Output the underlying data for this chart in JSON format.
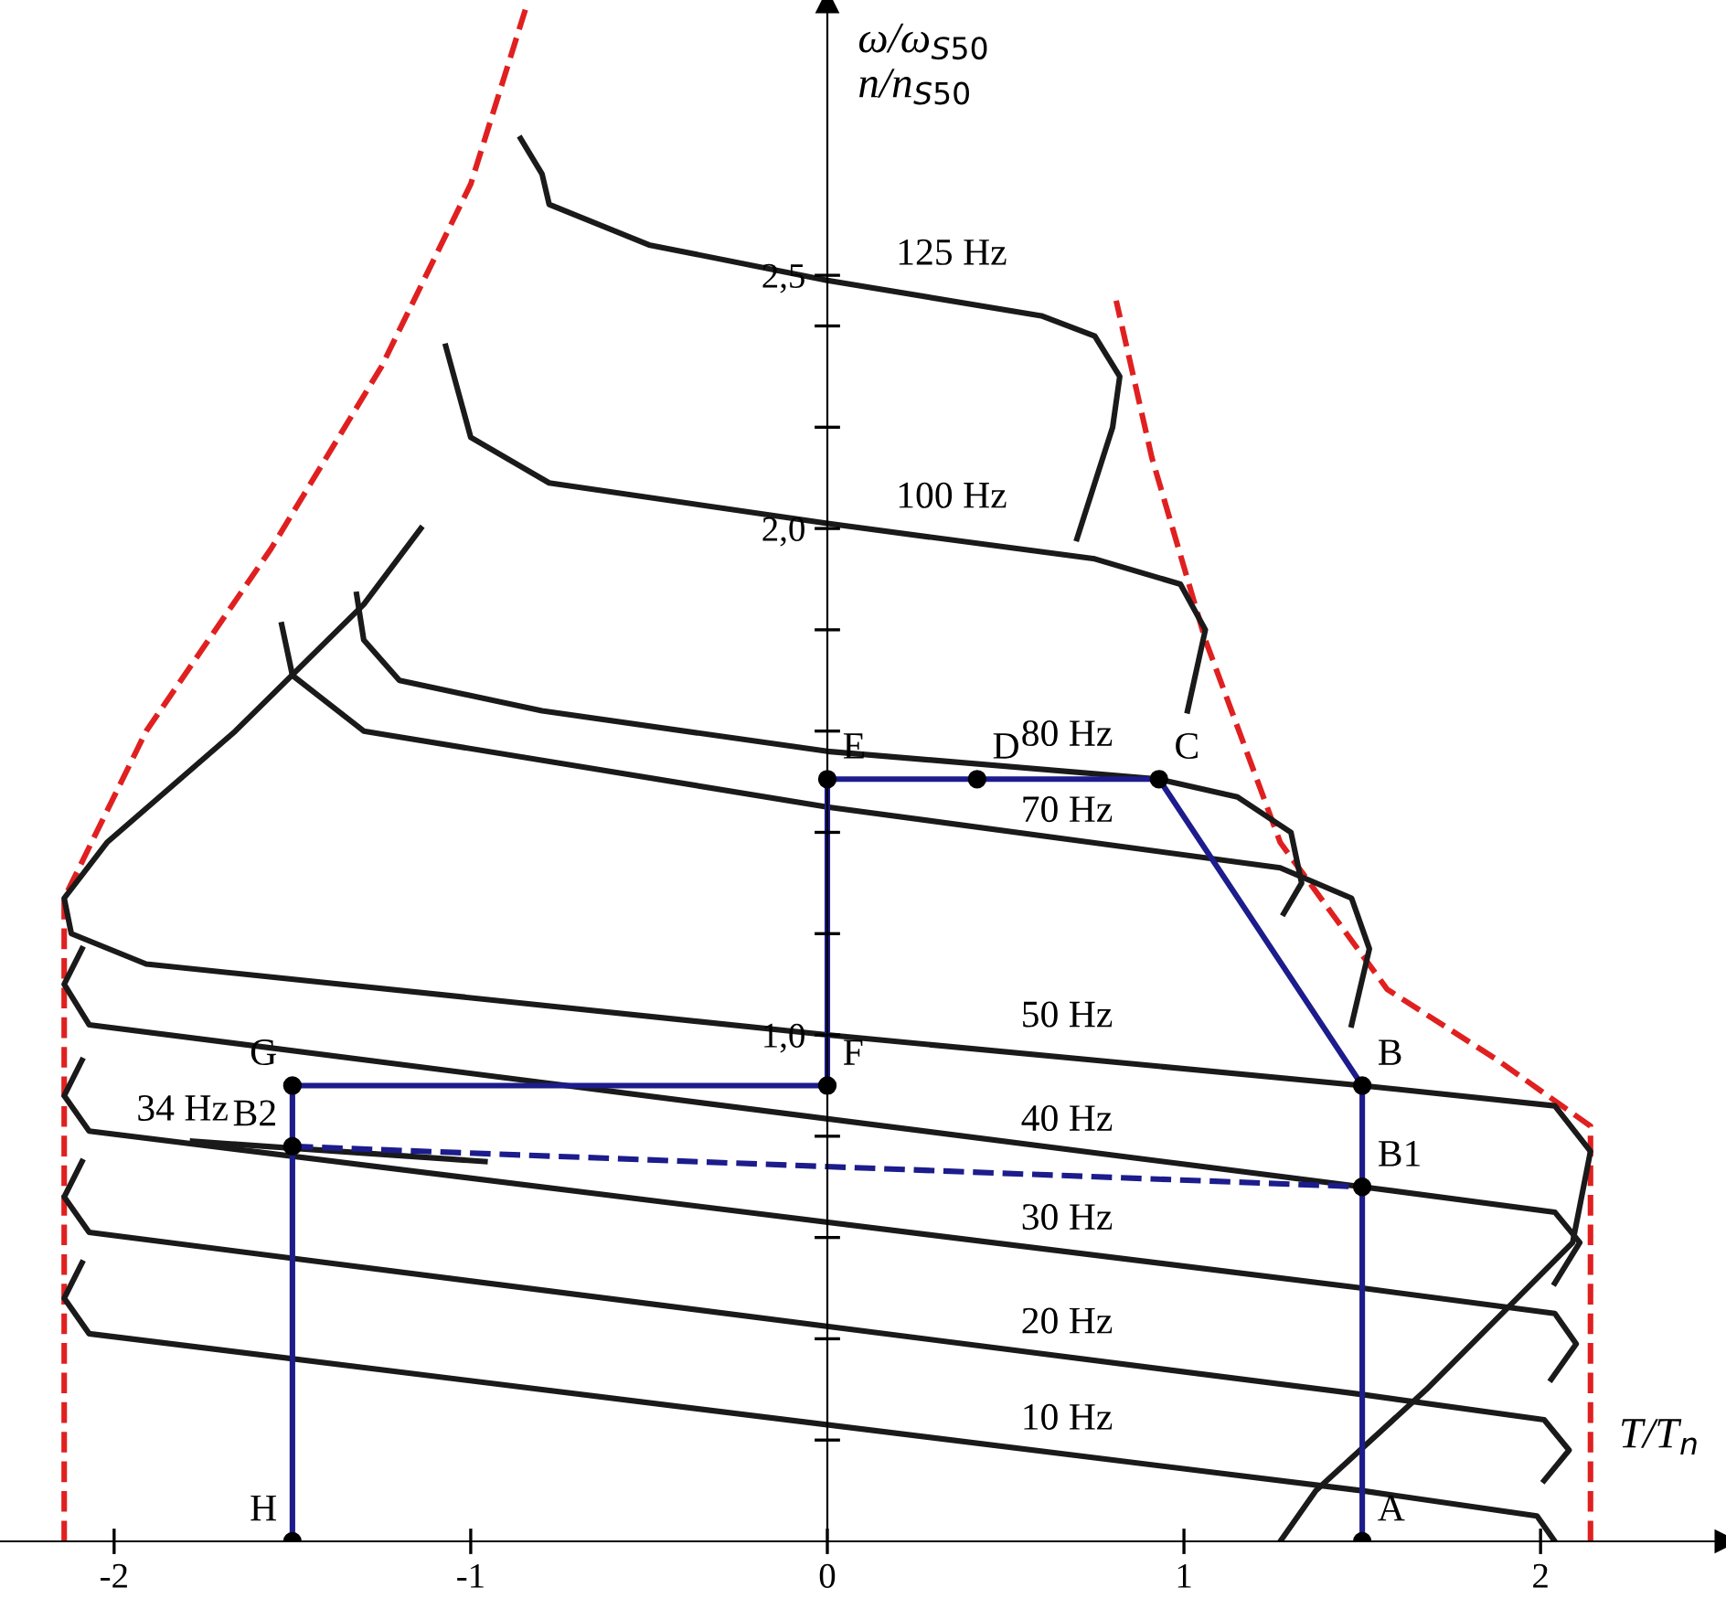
{
  "chart_data": {
    "type": "line",
    "xlabel": "T/T$_{n}$",
    "ylabel": "ω/ω$_{S50}$\nn/n$_{S50}$",
    "xlim": [
      -2.32,
      2.52
    ],
    "ylim": [
      0,
      3.04
    ],
    "xticks": [
      {
        "value": -2,
        "label": "-2"
      },
      {
        "value": -1,
        "label": "-1"
      },
      0,
      1,
      2
    ],
    "yticks": [
      {
        "value": 0.2,
        "label": null
      },
      {
        "value": 0.4,
        "label": null
      },
      {
        "value": 0.6,
        "label": null
      },
      {
        "value": 0.8,
        "label": null
      },
      {
        "value": 1.0,
        "label": "1,0"
      },
      {
        "value": 1.2,
        "label": null
      },
      {
        "value": 1.4,
        "label": null
      },
      {
        "value": 1.6,
        "label": null
      },
      {
        "value": 1.8,
        "label": null
      },
      {
        "value": 2.0,
        "label": "2,0"
      },
      {
        "value": 2.2,
        "label": null
      },
      {
        "value": 2.4,
        "label": null
      },
      {
        "value": 2.5,
        "label": "2,5"
      }
    ],
    "grid": false,
    "legend": false,
    "series": [
      {
        "color": "#e02020",
        "line_style": "dashed",
        "x": [
          -2.14,
          -2.14,
          -1.91,
          -1.56,
          -1.25,
          -1.0,
          -0.84
        ],
        "values": [
          0,
          1.27,
          1.6,
          1.96,
          2.32,
          2.68,
          3.04
        ]
      },
      {
        "color": "#e02020",
        "line_style": "dashed",
        "x": [
          2.14,
          2.14,
          1.88,
          1.57,
          1.27,
          1.06,
          0.91,
          0.81
        ],
        "values": [
          0,
          0.82,
          0.95,
          1.09,
          1.38,
          1.78,
          2.14,
          2.45
        ]
      },
      {
        "color": "#1a1a1a",
        "line_style": "solid",
        "x": [
          -0.86,
          -0.8,
          -0.78,
          -0.5,
          0,
          0.6,
          0.75,
          0.82,
          0.8,
          0.7
        ],
        "values": [
          2.77,
          2.7,
          2.64,
          2.56,
          2.49,
          2.42,
          2.38,
          2.3,
          2.2,
          1.98
        ]
      },
      {
        "color": "#1a1a1a",
        "line_style": "solid",
        "x": [
          -1.07,
          -1.0,
          -0.78,
          0,
          0.75,
          0.99,
          1.06,
          1.01
        ],
        "values": [
          2.36,
          2.18,
          2.09,
          2.01,
          1.94,
          1.89,
          1.8,
          1.64
        ]
      },
      {
        "color": "#1a1a1a",
        "line_style": "solid",
        "x": [
          -1.32,
          -1.3,
          -1.2,
          -0.8,
          0,
          0.93,
          1.15,
          1.3,
          1.33,
          1.28
        ],
        "values": [
          1.87,
          1.78,
          1.7,
          1.64,
          1.56,
          1.505,
          1.47,
          1.4,
          1.3,
          1.24
        ]
      },
      {
        "color": "#1a1a1a",
        "line_style": "solid",
        "x": [
          -1.53,
          -1.5,
          -1.3,
          0,
          1.27,
          1.47,
          1.52,
          1.47
        ],
        "values": [
          1.81,
          1.71,
          1.6,
          1.45,
          1.33,
          1.27,
          1.17,
          1.02
        ]
      },
      {
        "color": "#1a1a1a",
        "line_style": "solid",
        "x": [
          -1.14,
          -1.3,
          -1.66,
          -2.02,
          -2.14,
          -2.12,
          -1.91,
          0,
          1.5,
          2.04,
          2.14,
          2.09,
          1.68,
          1.37,
          1.27
        ],
        "values": [
          2.0,
          1.85,
          1.6,
          1.38,
          1.27,
          1.2,
          1.14,
          1.0,
          0.9,
          0.86,
          0.77,
          0.59,
          0.3,
          0.1,
          0.0
        ]
      },
      {
        "color": "#1a1a1a",
        "line_style": "solid",
        "x": [
          -2.09,
          -2.14,
          -2.07,
          1.5,
          2.04,
          2.11,
          2.04
        ],
        "values": [
          1.17,
          1.1,
          1.02,
          0.7,
          0.65,
          0.59,
          0.51
        ]
      },
      {
        "color": "#1a1a1a",
        "line_style": "solid",
        "x": [
          -2.09,
          -2.14,
          -2.07,
          1.5,
          2.04,
          2.1,
          2.03
        ],
        "values": [
          0.95,
          0.88,
          0.81,
          0.5,
          0.45,
          0.39,
          0.32
        ]
      },
      {
        "color": "#1a1a1a",
        "line_style": "solid",
        "x": [
          -2.09,
          -2.14,
          -2.07,
          1.5,
          2.01,
          2.08,
          2.01
        ],
        "values": [
          0.75,
          0.68,
          0.61,
          0.29,
          0.24,
          0.18,
          0.12
        ]
      },
      {
        "color": "#1a1a1a",
        "line_style": "solid",
        "x": [
          -2.09,
          -2.14,
          -2.07,
          1.5,
          1.99,
          2.04
        ],
        "values": [
          0.55,
          0.48,
          0.41,
          0.1,
          0.05,
          0.0
        ]
      },
      {
        "color": "#1a1a1a",
        "line_style": "solid",
        "x": [
          -1.78,
          -0.96
        ],
        "values": [
          0.79,
          0.75
        ]
      },
      {
        "color": "#1c1c8c",
        "line_style": "solid",
        "x": [
          -1.5,
          -1.5,
          0,
          0,
          0.42,
          0.93,
          1.5,
          1.5,
          1.5
        ],
        "values": [
          0,
          0.9,
          0.9,
          1.505,
          1.505,
          1.505,
          0.9,
          0.7,
          0
        ]
      },
      {
        "color": "#1c1c8c",
        "line_style": "dashed",
        "x": [
          -1.5,
          1.5
        ],
        "values": [
          0.78,
          0.7
        ]
      },
      {
        "type": "scatter",
        "color": "#000000",
        "marker": "circle",
        "x": [
          1.5,
          1.5,
          1.5,
          0.93,
          0.42,
          0,
          0,
          -1.5,
          -1.5,
          -1.5
        ],
        "values": [
          0,
          0.9,
          0.7,
          1.505,
          1.505,
          1.505,
          0.9,
          0.9,
          0.78,
          0
        ]
      }
    ],
    "annotations": [
      {
        "text": "125 Hz",
        "x": 0.15,
        "y": 2.48
      },
      {
        "text": "100 Hz",
        "x": 0.15,
        "y": 2.0
      },
      {
        "text": "80 Hz",
        "x": 0.5,
        "y": 1.53
      },
      {
        "text": "70 Hz",
        "x": 0.5,
        "y": 1.38
      },
      {
        "text": "50 Hz",
        "x": 0.5,
        "y": 0.975
      },
      {
        "text": "40 Hz",
        "x": 0.5,
        "y": 0.77
      },
      {
        "text": "30 Hz",
        "x": 0.5,
        "y": 0.575
      },
      {
        "text": "20 Hz",
        "x": 0.5,
        "y": 0.37
      },
      {
        "text": "10 Hz",
        "x": 0.5,
        "y": 0.18
      },
      {
        "text": "34 Hz",
        "x": -1.98,
        "y": 0.79
      },
      {
        "text": "A",
        "x": 1.5,
        "y": 0
      },
      {
        "text": "B",
        "x": 1.5,
        "y": 0.9
      },
      {
        "text": "B1",
        "x": 1.5,
        "y": 0.7
      },
      {
        "text": "C",
        "x": 0.93,
        "y": 1.505
      },
      {
        "text": "D",
        "x": 0.42,
        "y": 1.505
      },
      {
        "text": "E",
        "x": 0,
        "y": 1.505
      },
      {
        "text": "F",
        "x": 0,
        "y": 0.9
      },
      {
        "text": "G",
        "x": -1.5,
        "y": 0.9
      },
      {
        "text": "B2",
        "x": -1.5,
        "y": 0.78
      },
      {
        "text": "H",
        "x": -1.5,
        "y": 0
      }
    ]
  }
}
